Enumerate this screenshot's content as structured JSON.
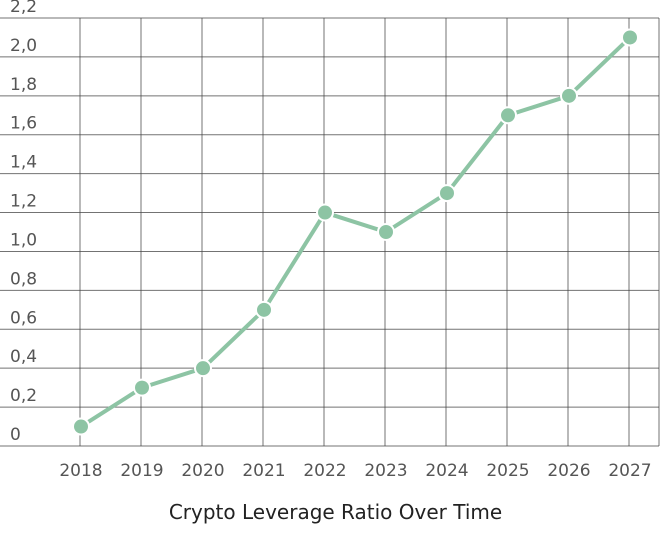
{
  "chart_data": {
    "type": "line",
    "title": "Crypto Leverage Ratio Over Time",
    "xlabel": "",
    "ylabel": "",
    "categories": [
      "2018",
      "2019",
      "2020",
      "2021",
      "2022",
      "2023",
      "2024",
      "2025",
      "2026",
      "2027"
    ],
    "series": [
      {
        "values": [
          0.1,
          0.3,
          0.4,
          0.7,
          1.2,
          1.1,
          1.3,
          1.7,
          1.8,
          2.1
        ]
      }
    ],
    "ylim": [
      0,
      2.2
    ],
    "yticks": [
      {
        "value": 0,
        "label": "0"
      },
      {
        "value": 0.2,
        "label": "0,2"
      },
      {
        "value": 0.4,
        "label": "0,4"
      },
      {
        "value": 0.6,
        "label": "0,6"
      },
      {
        "value": 0.8,
        "label": "0,8"
      },
      {
        "value": 1.0,
        "label": "1,0"
      },
      {
        "value": 1.2,
        "label": "1,2"
      },
      {
        "value": 1.4,
        "label": "1,4"
      },
      {
        "value": 1.6,
        "label": "1,6"
      },
      {
        "value": 1.8,
        "label": "1,8"
      },
      {
        "value": 2.0,
        "label": "2,0"
      },
      {
        "value": 2.2,
        "label": "2,2"
      }
    ],
    "grid": true,
    "legend": "none",
    "colors": {
      "line": "#8dc4a4",
      "marker_stroke": "#ffffff",
      "grid": "#444444",
      "tick_text": "#555555"
    }
  }
}
